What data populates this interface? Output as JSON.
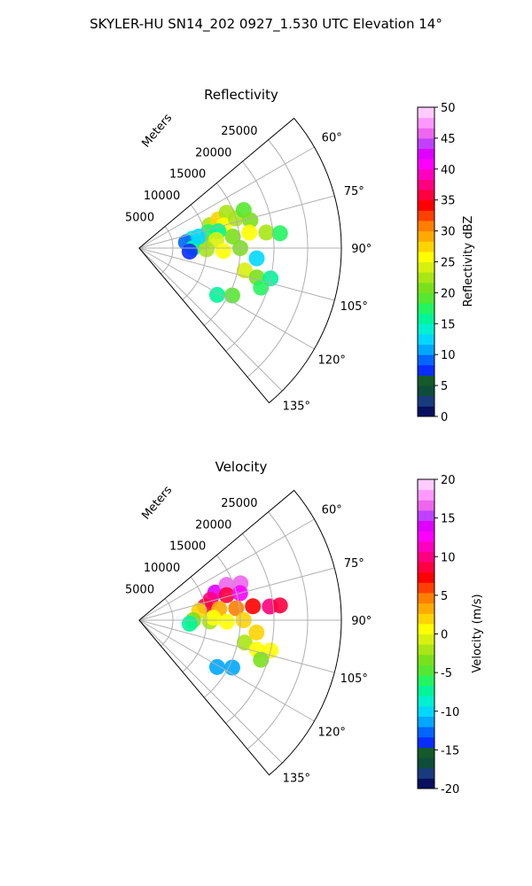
{
  "figure": {
    "title": "SKYLER-HU  SN14_202  0927_1.530 UTC Elevation 14°"
  },
  "chart_data": [
    {
      "type": "heatmap",
      "title": "Reflectivity",
      "projection": "polar-sector",
      "range_label": "Meters",
      "range_ticks": [
        5000,
        10000,
        15000,
        20000,
        25000
      ],
      "range_max": 30000,
      "azimuth_ticks": [
        "60°",
        "75°",
        "90°",
        "105°",
        "120°",
        "135°"
      ],
      "azimuth_range_deg": [
        50,
        140
      ],
      "colorbar": {
        "label": "Reflectivity dBZ",
        "ticks": [
          0,
          5,
          10,
          15,
          20,
          25,
          30,
          35,
          40,
          45,
          50
        ],
        "range": [
          0,
          50
        ],
        "colors": [
          "#06105e",
          "#1a3a7e",
          "#0d4d3a",
          "#145a2a",
          "#0a2dff",
          "#0066ff",
          "#00a8ff",
          "#00d8ff",
          "#00f0d0",
          "#00f59a",
          "#22f560",
          "#55e830",
          "#7be01c",
          "#a8e614",
          "#d8f00e",
          "#ffff00",
          "#ffd400",
          "#ffaa00",
          "#ff7f00",
          "#ff4000",
          "#ff0000",
          "#ff0040",
          "#ff0080",
          "#ff00c0",
          "#ff00ff",
          "#e000ff",
          "#c040ff",
          "#ee66ee",
          "#ff99ff",
          "#ffccff"
        ]
      },
      "cells": [
        {
          "r": 11000,
          "az": 72,
          "v": 22
        },
        {
          "r": 12500,
          "az": 70,
          "v": 27
        },
        {
          "r": 14000,
          "az": 68,
          "v": 23
        },
        {
          "r": 13000,
          "az": 75,
          "v": 26
        },
        {
          "r": 15000,
          "az": 73,
          "v": 22
        },
        {
          "r": 16500,
          "az": 70,
          "v": 19
        },
        {
          "r": 10500,
          "az": 77,
          "v": 18
        },
        {
          "r": 12000,
          "az": 78,
          "v": 15
        },
        {
          "r": 17000,
          "az": 76,
          "v": 21
        },
        {
          "r": 8000,
          "az": 80,
          "v": 14
        },
        {
          "r": 7000,
          "az": 83,
          "v": 9
        },
        {
          "r": 9500,
          "az": 85,
          "v": 20
        },
        {
          "r": 11500,
          "az": 84,
          "v": 24
        },
        {
          "r": 14000,
          "az": 83,
          "v": 21
        },
        {
          "r": 16500,
          "az": 82,
          "v": 26
        },
        {
          "r": 19000,
          "az": 83,
          "v": 22
        },
        {
          "r": 21000,
          "az": 84,
          "v": 18
        },
        {
          "r": 8000,
          "az": 90,
          "v": 16
        },
        {
          "r": 10000,
          "az": 91,
          "v": 22
        },
        {
          "r": 12500,
          "az": 92,
          "v": 26
        },
        {
          "r": 15000,
          "az": 90,
          "v": 20
        },
        {
          "r": 7500,
          "az": 94,
          "v": 8
        },
        {
          "r": 17500,
          "az": 95,
          "v": 13
        },
        {
          "r": 16000,
          "az": 102,
          "v": 24
        },
        {
          "r": 18000,
          "az": 104,
          "v": 20
        },
        {
          "r": 20000,
          "az": 103,
          "v": 16
        },
        {
          "r": 19000,
          "az": 108,
          "v": 18
        },
        {
          "r": 13500,
          "az": 121,
          "v": 15
        },
        {
          "r": 15500,
          "az": 117,
          "v": 19
        },
        {
          "r": 9000,
          "az": 79,
          "v": 12
        }
      ]
    },
    {
      "type": "heatmap",
      "title": "Velocity",
      "projection": "polar-sector",
      "range_label": "Meters",
      "range_ticks": [
        5000,
        10000,
        15000,
        20000,
        25000
      ],
      "range_max": 30000,
      "azimuth_ticks": [
        "60°",
        "75°",
        "90°",
        "105°",
        "120°",
        "135°"
      ],
      "azimuth_range_deg": [
        50,
        140
      ],
      "colorbar": {
        "label": "Velocity (m/s)",
        "ticks": [
          -20,
          -15,
          -10,
          -5,
          0,
          5,
          10,
          15,
          20
        ],
        "range": [
          -20,
          20
        ],
        "colors": [
          "#06105e",
          "#1a3a7e",
          "#0d4d3a",
          "#145a2a",
          "#0a2dff",
          "#0066ff",
          "#00a8ff",
          "#00d8ff",
          "#00f0d0",
          "#00f59a",
          "#22f560",
          "#55e830",
          "#7be01c",
          "#a8e614",
          "#d8f00e",
          "#ffff00",
          "#ffd400",
          "#ffaa00",
          "#ff7f00",
          "#ff4000",
          "#ff0000",
          "#ff0040",
          "#ff0080",
          "#ff00c0",
          "#ff00ff",
          "#e000ff",
          "#c040ff",
          "#ee66ee",
          "#ff99ff",
          "#ffccff"
        ]
      },
      "cells": [
        {
          "r": 12000,
          "az": 70,
          "v": 14
        },
        {
          "r": 14000,
          "az": 68,
          "v": 16
        },
        {
          "r": 16000,
          "az": 70,
          "v": 17
        },
        {
          "r": 11000,
          "az": 74,
          "v": 10
        },
        {
          "r": 13500,
          "az": 74,
          "v": 9
        },
        {
          "r": 15500,
          "az": 75,
          "v": 12
        },
        {
          "r": 10000,
          "az": 78,
          "v": 9
        },
        {
          "r": 9000,
          "az": 81,
          "v": 2
        },
        {
          "r": 12000,
          "az": 82,
          "v": 3
        },
        {
          "r": 14500,
          "az": 83,
          "v": 5
        },
        {
          "r": 17000,
          "az": 83,
          "v": 7
        },
        {
          "r": 19500,
          "az": 84,
          "v": 10
        },
        {
          "r": 21000,
          "az": 84,
          "v": 9
        },
        {
          "r": 8000,
          "az": 90,
          "v": -3
        },
        {
          "r": 10500,
          "az": 91,
          "v": -2
        },
        {
          "r": 13000,
          "az": 91,
          "v": 1
        },
        {
          "r": 15500,
          "az": 90,
          "v": 2
        },
        {
          "r": 7500,
          "az": 94,
          "v": -7
        },
        {
          "r": 16000,
          "az": 102,
          "v": -2
        },
        {
          "r": 18000,
          "az": 104,
          "v": 0
        },
        {
          "r": 20000,
          "az": 103,
          "v": 1
        },
        {
          "r": 19000,
          "az": 108,
          "v": -3
        },
        {
          "r": 13500,
          "az": 121,
          "v": -12
        },
        {
          "r": 15500,
          "az": 117,
          "v": -11
        },
        {
          "r": 17500,
          "az": 96,
          "v": 2
        },
        {
          "r": 11000,
          "az": 88,
          "v": 0
        }
      ]
    }
  ]
}
